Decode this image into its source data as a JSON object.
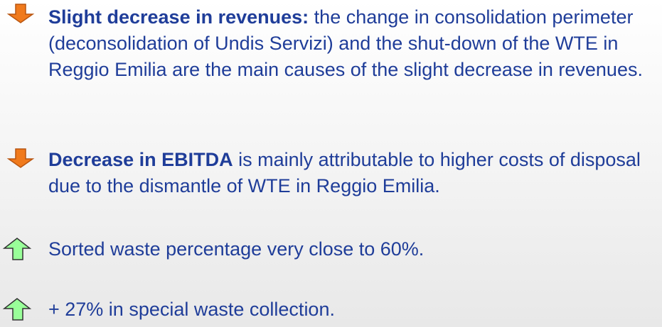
{
  "items": [
    {
      "bold": "Slight decrease in revenues:",
      "text": "the change in consolidation perimeter (deconsolidation of Undis Servizi) and the shut-down of the WTE in Reggio Emilia are the main causes of the slight decrease in revenues."
    },
    {
      "bold": "Decrease in EBITDA",
      "text": "is mainly attributable to higher costs of disposal due to the dismantle of WTE in Reggio Emilia."
    },
    {
      "text": "Sorted waste percentage very close to 60%."
    },
    {
      "text": "+ 27% in special waste collection."
    }
  ]
}
